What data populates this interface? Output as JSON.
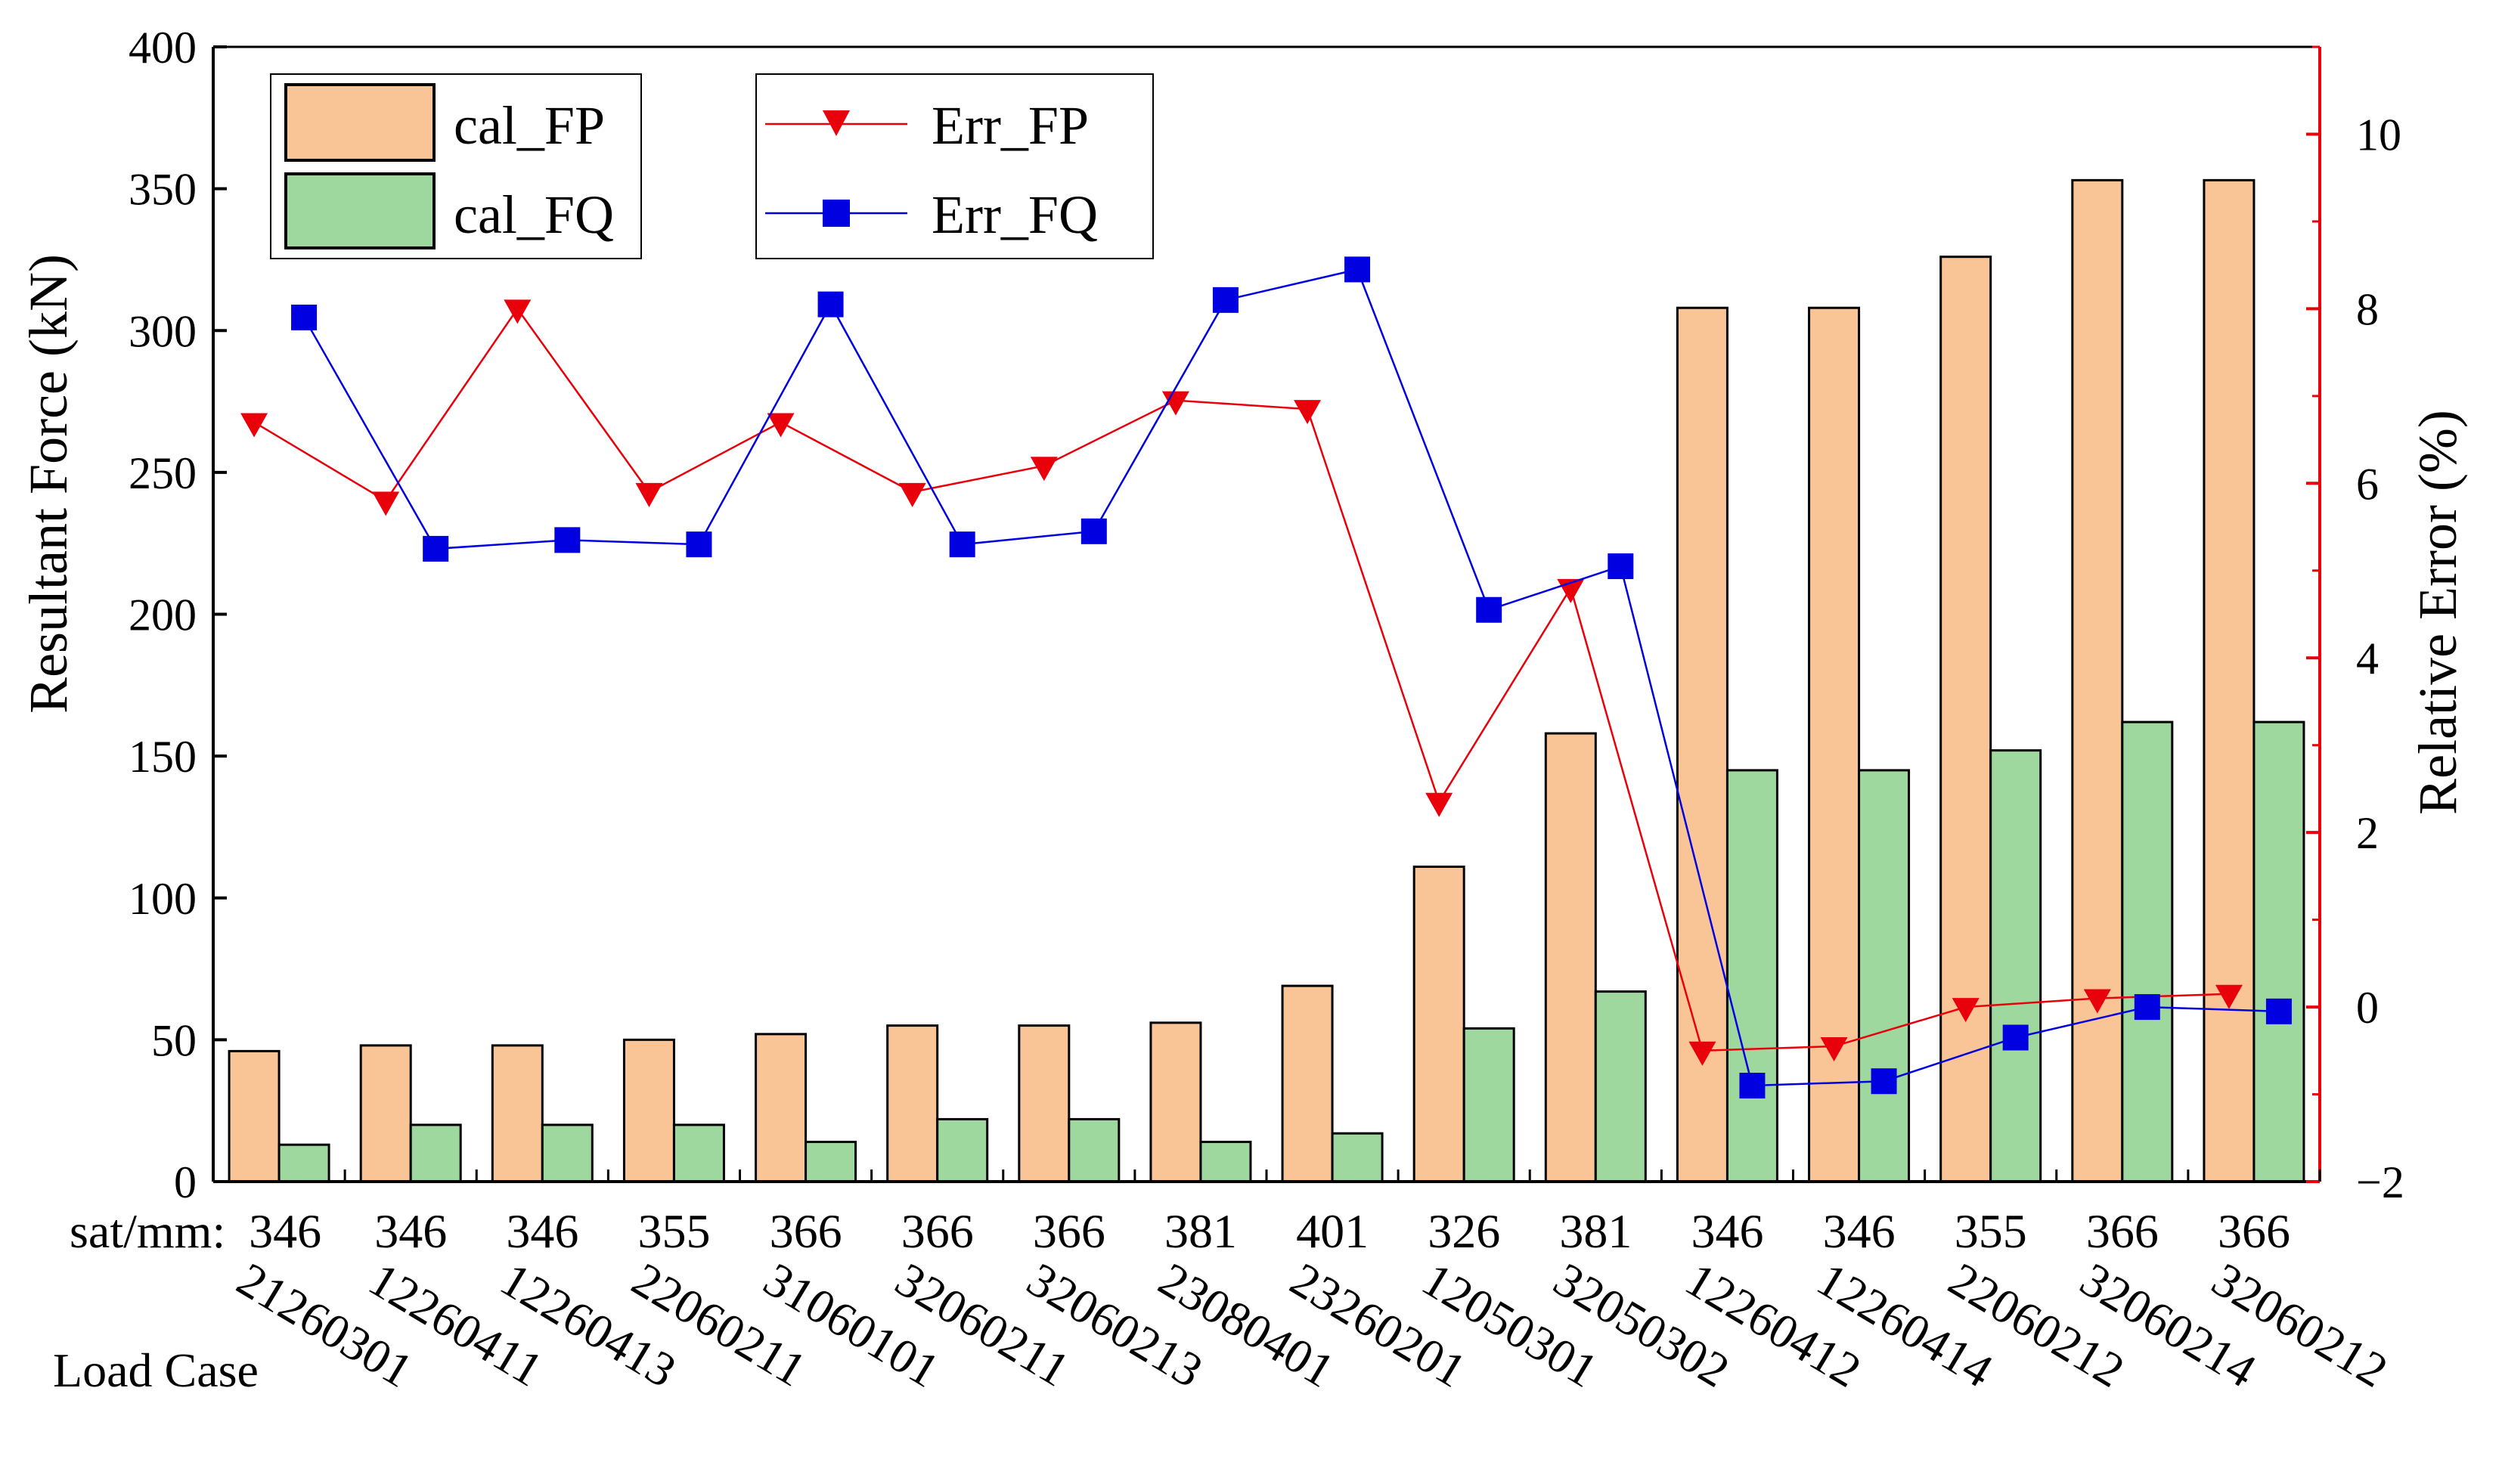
{
  "chart_data": {
    "type": "bar",
    "title": "",
    "xlabel": "",
    "ylabel": "Resultant Force (kN)",
    "y2label": "Relative Error (%)",
    "ylim": [
      0,
      400
    ],
    "yticks": [
      "0",
      "50",
      "100",
      "150",
      "200",
      "250",
      "300",
      "350",
      "400"
    ],
    "y2lim": [
      -2,
      11
    ],
    "y2ticks": [
      "−2",
      "0",
      "2",
      "4",
      "6",
      "8",
      "10"
    ],
    "row_prefix": "sat/mm:",
    "row2_title": "Load Case",
    "categories": [
      "346",
      "346",
      "346",
      "355",
      "366",
      "366",
      "366",
      "381",
      "401",
      "326",
      "381",
      "346",
      "346",
      "355",
      "366",
      "366"
    ],
    "load_cases": [
      "21260301",
      "12260411",
      "12260413",
      "22060211",
      "31060101",
      "32060211",
      "32060213",
      "23080401",
      "23260201",
      "12050301",
      "32050302",
      "12260412",
      "12260414",
      "22060212",
      "32060214",
      "32060212"
    ],
    "bar_series": [
      {
        "name": "cal_FP",
        "color": "#F9C596",
        "values": [
          46,
          48,
          48,
          50,
          52,
          55,
          55,
          56,
          69,
          111,
          158,
          308,
          308,
          326,
          353,
          353
        ]
      },
      {
        "name": "cal_FQ",
        "color": "#9FD89E",
        "values": [
          13,
          20,
          20,
          20,
          14,
          22,
          22,
          14,
          17,
          54,
          67,
          145,
          145,
          152,
          162,
          162
        ]
      }
    ],
    "line_series": [
      {
        "name": "Err_FP",
        "color": "#E8000B",
        "marker": "triangle-down",
        "axis": "right",
        "values": [
          6.7,
          5.8,
          8.0,
          5.9,
          6.7,
          5.9,
          6.2,
          6.95,
          6.85,
          2.35,
          4.8,
          -0.5,
          -0.45,
          0.0,
          0.1,
          0.15
        ]
      },
      {
        "name": "Err_FQ",
        "color": "#0000E0",
        "marker": "square",
        "axis": "right",
        "values": [
          7.9,
          5.25,
          5.35,
          5.3,
          8.05,
          5.3,
          5.45,
          8.1,
          8.45,
          4.55,
          5.05,
          -0.9,
          -0.85,
          -0.35,
          0.0,
          -0.05
        ]
      }
    ],
    "legend_position": "top-left"
  }
}
